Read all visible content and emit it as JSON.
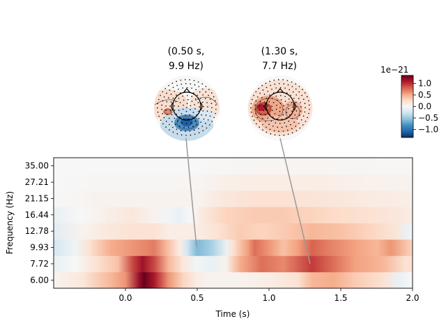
{
  "chart_data": {
    "type": "heatmap",
    "xlabel": "Time (s)",
    "ylabel": "Frequency (Hz)",
    "xlim": [
      -0.5,
      2.0
    ],
    "x_ticks": [
      {
        "value": 0.0,
        "label": "0.0"
      },
      {
        "value": 0.5,
        "label": "0.5"
      },
      {
        "value": 1.0,
        "label": "1.0"
      },
      {
        "value": 1.5,
        "label": "1.5"
      },
      {
        "value": 2.0,
        "label": "2.0"
      }
    ],
    "frequencies": [
      "6.00",
      "7.72",
      "9.93",
      "12.78",
      "16.44",
      "21.15",
      "27.21",
      "35.00"
    ],
    "colormap": "RdBu_r",
    "colorbar": {
      "scale_label": "1e−21",
      "range": [
        -1.35,
        1.35
      ],
      "ticks": [
        {
          "value": 1.0,
          "label": "1.0"
        },
        {
          "value": 0.5,
          "label": "0.5"
        },
        {
          "value": 0.0,
          "label": "0.0"
        },
        {
          "value": -0.5,
          "label": "−0.5"
        },
        {
          "value": -1.0,
          "label": "−1.0"
        }
      ]
    },
    "topomaps": [
      {
        "time": 0.5,
        "freq": 9.93,
        "title_line1": "(0.50 s,",
        "title_line2": "9.9 Hz)"
      },
      {
        "time": 1.3,
        "freq": 7.72,
        "title_line1": "(1.30 s,",
        "title_line2": "7.7 Hz)"
      }
    ],
    "rows": [
      {
        "freq": "6.00",
        "values": [
          [
            -0.5,
            0.05
          ],
          [
            -0.3,
            0.15
          ],
          [
            -0.1,
            0.45
          ],
          [
            0.0,
            0.6
          ],
          [
            0.1,
            1.2
          ],
          [
            0.13,
            1.35
          ],
          [
            0.2,
            1.1
          ],
          [
            0.3,
            0.6
          ],
          [
            0.4,
            0.3
          ],
          [
            0.5,
            0.1
          ],
          [
            0.6,
            0.05
          ],
          [
            0.8,
            0.05
          ],
          [
            1.0,
            0.1
          ],
          [
            1.2,
            0.2
          ],
          [
            1.3,
            0.45
          ],
          [
            1.45,
            0.5
          ],
          [
            1.6,
            0.35
          ],
          [
            1.8,
            0.2
          ],
          [
            1.9,
            -0.1
          ],
          [
            2.0,
            0.0
          ]
        ]
      },
      {
        "freq": "7.72",
        "values": [
          [
            -0.5,
            -0.1
          ],
          [
            -0.35,
            0.0
          ],
          [
            -0.2,
            0.2
          ],
          [
            -0.05,
            0.4
          ],
          [
            0.05,
            0.9
          ],
          [
            0.12,
            1.15
          ],
          [
            0.2,
            0.9
          ],
          [
            0.3,
            0.45
          ],
          [
            0.4,
            0.15
          ],
          [
            0.5,
            -0.05
          ],
          [
            0.6,
            -0.1
          ],
          [
            0.7,
            0.05
          ],
          [
            0.8,
            0.5
          ],
          [
            0.95,
            0.75
          ],
          [
            1.1,
            0.65
          ],
          [
            1.3,
            0.95
          ],
          [
            1.45,
            0.75
          ],
          [
            1.6,
            0.55
          ],
          [
            1.8,
            0.45
          ],
          [
            1.95,
            0.2
          ],
          [
            2.0,
            0.2
          ]
        ]
      },
      {
        "freq": "9.93",
        "values": [
          [
            -0.5,
            -0.25
          ],
          [
            -0.35,
            -0.05
          ],
          [
            -0.25,
            0.2
          ],
          [
            -0.1,
            0.5
          ],
          [
            0.05,
            0.6
          ],
          [
            0.2,
            0.7
          ],
          [
            0.3,
            0.4
          ],
          [
            0.38,
            0.1
          ],
          [
            0.43,
            -0.25
          ],
          [
            0.5,
            -0.6
          ],
          [
            0.6,
            -0.45
          ],
          [
            0.7,
            -0.1
          ],
          [
            0.75,
            0.2
          ],
          [
            0.85,
            0.55
          ],
          [
            0.9,
            0.75
          ],
          [
            1.0,
            0.6
          ],
          [
            1.1,
            0.4
          ],
          [
            1.2,
            0.55
          ],
          [
            1.3,
            0.8
          ],
          [
            1.4,
            0.7
          ],
          [
            1.6,
            0.55
          ],
          [
            1.75,
            0.45
          ],
          [
            1.85,
            0.6
          ],
          [
            2.0,
            0.3
          ]
        ]
      },
      {
        "freq": "12.78",
        "values": [
          [
            -0.5,
            -0.15
          ],
          [
            -0.3,
            0.05
          ],
          [
            -0.1,
            0.15
          ],
          [
            0.05,
            0.2
          ],
          [
            0.2,
            0.2
          ],
          [
            0.3,
            0.1
          ],
          [
            0.5,
            0.1
          ],
          [
            0.65,
            0.2
          ],
          [
            0.8,
            0.35
          ],
          [
            0.95,
            0.3
          ],
          [
            1.1,
            0.35
          ],
          [
            1.3,
            0.45
          ],
          [
            1.5,
            0.4
          ],
          [
            1.7,
            0.3
          ],
          [
            1.9,
            0.15
          ],
          [
            1.95,
            -0.1
          ],
          [
            2.0,
            0.05
          ]
        ]
      },
      {
        "freq": "16.44",
        "values": [
          [
            -0.5,
            -0.1
          ],
          [
            -0.3,
            0.0
          ],
          [
            -0.1,
            0.1
          ],
          [
            0.05,
            0.15
          ],
          [
            0.2,
            0.05
          ],
          [
            0.3,
            -0.05
          ],
          [
            0.38,
            -0.1
          ],
          [
            0.45,
            0.0
          ],
          [
            0.55,
            0.15
          ],
          [
            0.7,
            0.3
          ],
          [
            0.9,
            0.35
          ],
          [
            1.1,
            0.35
          ],
          [
            1.3,
            0.3
          ],
          [
            1.5,
            0.25
          ],
          [
            1.7,
            0.2
          ],
          [
            1.9,
            0.15
          ],
          [
            2.0,
            0.1
          ]
        ]
      },
      {
        "freq": "21.15",
        "values": [
          [
            -0.5,
            0.0
          ],
          [
            -0.2,
            0.05
          ],
          [
            0.0,
            0.05
          ],
          [
            0.3,
            0.05
          ],
          [
            0.5,
            0.05
          ],
          [
            0.7,
            0.15
          ],
          [
            0.9,
            0.2
          ],
          [
            1.1,
            0.2
          ],
          [
            1.3,
            0.18
          ],
          [
            1.5,
            0.15
          ],
          [
            1.7,
            0.12
          ],
          [
            1.9,
            0.1
          ],
          [
            2.0,
            0.08
          ]
        ]
      },
      {
        "freq": "27.21",
        "values": [
          [
            -0.5,
            0.0
          ],
          [
            -0.2,
            0.02
          ],
          [
            0.0,
            0.02
          ],
          [
            0.3,
            0.02
          ],
          [
            0.5,
            0.03
          ],
          [
            0.7,
            0.08
          ],
          [
            0.9,
            0.1
          ],
          [
            1.1,
            0.1
          ],
          [
            1.3,
            0.1
          ],
          [
            1.5,
            0.08
          ],
          [
            1.7,
            0.06
          ],
          [
            2.0,
            0.05
          ]
        ]
      },
      {
        "freq": "35.00",
        "values": [
          [
            -0.5,
            0.0
          ],
          [
            0.0,
            0.0
          ],
          [
            0.5,
            0.0
          ],
          [
            0.8,
            0.02
          ],
          [
            1.2,
            0.03
          ],
          [
            1.6,
            0.02
          ],
          [
            2.0,
            0.01
          ]
        ]
      }
    ]
  }
}
